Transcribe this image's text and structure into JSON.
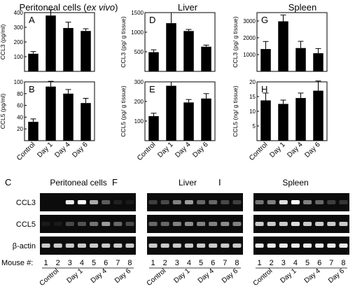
{
  "headers": {
    "col1_prefix": "Peritoneal cells (",
    "col1_italic": "ex vivo",
    "col1_suffix": ")",
    "col2": "Liver",
    "col3": "Spleen"
  },
  "categories": [
    "Control",
    "Day 1",
    "Day 4",
    "Day 6"
  ],
  "chart_data": [
    {
      "panel": "A",
      "type": "bar",
      "ylabel": "CCL3 (pg/ml)",
      "ylim": [
        0,
        400
      ],
      "yticks": [
        100,
        200,
        300,
        400
      ],
      "categories": [
        "Control",
        "Day 1",
        "Day 4",
        "Day 6"
      ],
      "values": [
        120,
        380,
        295,
        275
      ],
      "errors": [
        15,
        40,
        40,
        15
      ]
    },
    {
      "panel": "B",
      "type": "bar",
      "ylabel": "CCL5 (pg/ml)",
      "ylim": [
        0,
        100
      ],
      "yticks": [
        20,
        40,
        60,
        80,
        100
      ],
      "categories": [
        "Control",
        "Day 1",
        "Day 4",
        "Day 6"
      ],
      "values": [
        32,
        92,
        80,
        64
      ],
      "errors": [
        5,
        9,
        7,
        8
      ]
    },
    {
      "panel": "D",
      "type": "bar",
      "ylabel": "CCL3 (pg/ g tissue)",
      "ylim": [
        0,
        1500
      ],
      "yticks": [
        500,
        1000,
        1500
      ],
      "categories": [
        "Control",
        "Day 1",
        "Day 4",
        "Day 6"
      ],
      "values": [
        490,
        1230,
        1030,
        630
      ],
      "errors": [
        60,
        270,
        40,
        40
      ]
    },
    {
      "panel": "E",
      "type": "bar",
      "ylabel": "CCL5 (pg/ g tissue)",
      "ylim": [
        0,
        300
      ],
      "yticks": [
        100,
        200,
        300
      ],
      "categories": [
        "Control",
        "Day 1",
        "Day 4",
        "Day 6"
      ],
      "values": [
        125,
        280,
        195,
        215
      ],
      "errors": [
        15,
        20,
        15,
        25
      ]
    },
    {
      "panel": "G",
      "type": "bar",
      "ylabel": "CCL3 (pg/ g tissue)",
      "ylim": [
        0,
        3500
      ],
      "yticks": [
        1000,
        2000,
        3000
      ],
      "categories": [
        "Control",
        "Day 1",
        "Day 4",
        "Day 6"
      ],
      "values": [
        1330,
        2980,
        1390,
        1080
      ],
      "errors": [
        450,
        380,
        400,
        280
      ]
    },
    {
      "panel": "H",
      "type": "bar",
      "ylabel": "CCL5 (ng/ g tissue)",
      "ylim": [
        0,
        20
      ],
      "yticks": [
        5,
        10,
        15,
        20
      ],
      "categories": [
        "Control",
        "Day 1",
        "Day 4",
        "Day 6"
      ],
      "values": [
        13.7,
        12.5,
        14.5,
        17
      ],
      "errors": [
        2.5,
        1.3,
        1.7,
        3.3
      ]
    }
  ],
  "gels": [
    {
      "panel": "C",
      "title": "Peritoneal cells",
      "rows": [
        {
          "label": "CCL3",
          "intensity": [
            0,
            0,
            0.95,
            1.0,
            0.75,
            0.45,
            0.1,
            0.05
          ]
        },
        {
          "label": "CCL5",
          "intensity": [
            0.05,
            0.05,
            0.35,
            0.4,
            0.55,
            0.7,
            0.5,
            0.35
          ]
        },
        {
          "label": "β-actin",
          "intensity": [
            0.85,
            0.85,
            0.85,
            0.85,
            0.85,
            0.85,
            0.85,
            0.85
          ]
        }
      ]
    },
    {
      "panel": "F",
      "title": "Liver",
      "rows": [
        {
          "label": "",
          "intensity": [
            0.3,
            0.35,
            0.6,
            0.7,
            0.5,
            0.5,
            0.35,
            0.3
          ]
        },
        {
          "label": "",
          "intensity": [
            0.5,
            0.5,
            0.6,
            0.65,
            0.6,
            0.6,
            0.65,
            0.6
          ]
        },
        {
          "label": "",
          "intensity": [
            0.85,
            0.85,
            0.85,
            0.85,
            0.85,
            0.85,
            0.85,
            0.85
          ]
        }
      ]
    },
    {
      "panel": "I",
      "title": "Spleen",
      "rows": [
        {
          "label": "",
          "intensity": [
            0.55,
            0.6,
            0.9,
            1.0,
            0.6,
            0.5,
            0.3,
            0.25
          ]
        },
        {
          "label": "",
          "intensity": [
            0.85,
            0.85,
            0.85,
            0.9,
            0.85,
            0.85,
            0.85,
            0.85
          ]
        },
        {
          "label": "",
          "intensity": [
            0.95,
            0.95,
            0.95,
            0.95,
            0.95,
            0.95,
            0.95,
            0.95
          ]
        }
      ]
    }
  ],
  "mouse_label": "Mouse #:",
  "mouse_numbers": [
    "1",
    "2",
    "3",
    "4",
    "5",
    "6",
    "7",
    "8"
  ],
  "group_labels": [
    "Control",
    "Day 1",
    "Day 4",
    "Day 6"
  ]
}
